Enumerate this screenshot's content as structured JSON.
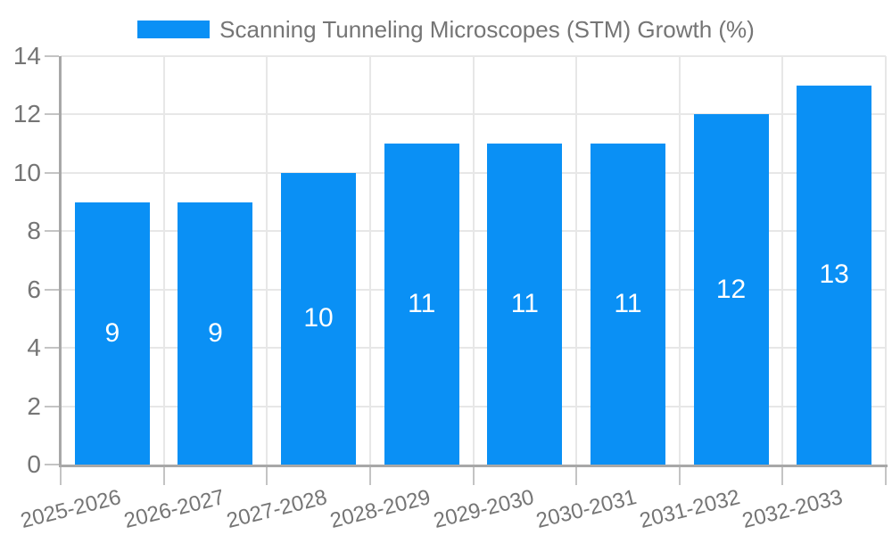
{
  "chart_data": {
    "type": "bar",
    "title": "Scanning Tunneling Microscopes (STM) Growth (%)",
    "categories": [
      "2025-2026",
      "2026-2027",
      "2027-2028",
      "2028-2029",
      "2029-2030",
      "2030-2031",
      "2031-2032",
      "2032-2033"
    ],
    "series": [
      {
        "name": "Scanning Tunneling Microscopes (STM) Growth (%)",
        "values": [
          9,
          9,
          10,
          11,
          11,
          11,
          12,
          13
        ]
      }
    ],
    "xlabel": "",
    "ylabel": "",
    "ylim": [
      0,
      14
    ],
    "yticks": [
      0,
      2,
      4,
      6,
      8,
      10,
      12,
      14
    ],
    "grid": true,
    "legend_position": "top-center",
    "bar_label_position": "inside-center",
    "x_label_rotation_deg": -14,
    "colors": {
      "bar": "#0a90f5",
      "bar_label": "#ffffff",
      "axis_text": "#757575",
      "gridline": "#e7e7e7",
      "axis_line": "#a8a8a8",
      "tick": "#c4c4c4",
      "background": "#ffffff"
    }
  }
}
